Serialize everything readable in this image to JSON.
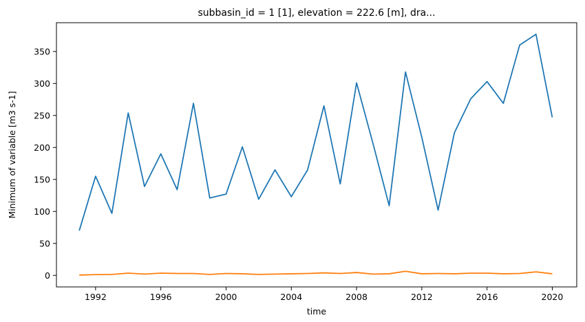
{
  "chart_data": {
    "type": "line",
    "title": "subbasin_id = 1 [1], elevation = 222.6 [m], dra...",
    "xlabel": "time",
    "ylabel": "Minimum of variable [m3 s-1]",
    "xlim": [
      1989.6,
      2021.5
    ],
    "ylim": [
      -18,
      395
    ],
    "xticks": [
      1992,
      1996,
      2000,
      2004,
      2008,
      2012,
      2016,
      2020
    ],
    "yticks": [
      0,
      50,
      100,
      150,
      200,
      250,
      300,
      350
    ],
    "grid": false,
    "legend": "none",
    "x": [
      1991,
      1992,
      1993,
      1994,
      1995,
      1996,
      1997,
      1998,
      1999,
      2000,
      2001,
      2002,
      2003,
      2004,
      2005,
      2006,
      2007,
      2008,
      2009,
      2010,
      2011,
      2012,
      2013,
      2014,
      2015,
      2016,
      2017,
      2018,
      2019,
      2020
    ],
    "series": [
      {
        "color": "#1f77b4",
        "values": [
          70,
          155,
          97,
          254,
          139,
          190,
          134,
          269,
          121,
          127,
          201,
          119,
          165,
          123,
          165,
          265,
          143,
          301,
          207,
          109,
          318,
          216,
          102,
          223,
          276,
          303,
          269,
          360,
          377,
          247
        ]
      },
      {
        "color": "#ff7f0e",
        "values": [
          0.5,
          1.2,
          1.5,
          3.5,
          2.0,
          3.5,
          3.0,
          3.0,
          1.5,
          3.0,
          2.5,
          1.5,
          2.0,
          2.5,
          3.0,
          4.0,
          3.0,
          4.5,
          2.0,
          2.5,
          6.5,
          2.5,
          3.0,
          2.5,
          3.5,
          3.5,
          2.5,
          3.0,
          5.5,
          2.5
        ]
      }
    ]
  }
}
